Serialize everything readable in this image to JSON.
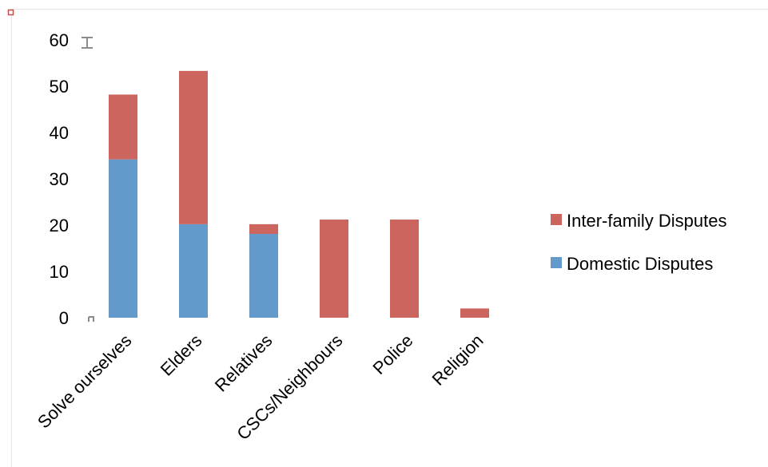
{
  "chart_data": {
    "type": "bar",
    "stacked": true,
    "categories": [
      "Solve ourselves",
      "Elders",
      "Relatives",
      "CSCs/Neighbours",
      "Police",
      "Religion"
    ],
    "series": [
      {
        "name": "Domestic Disputes",
        "color": "#6399cb",
        "values": [
          34.2,
          20.2,
          18.1,
          0,
          0,
          0
        ]
      },
      {
        "name": "Inter-family Disputes",
        "color": "#cd655f",
        "values": [
          14,
          33.1,
          2.1,
          21.2,
          21.2,
          2
        ]
      }
    ],
    "ylim": [
      0,
      60
    ],
    "yticks": [
      0,
      10,
      20,
      30,
      40,
      50,
      60
    ],
    "grid": false,
    "legend_placement": "right",
    "legend_order": [
      "Inter-family Disputes",
      "Domestic Disputes"
    ],
    "title": "",
    "xlabel": "",
    "ylabel": ""
  }
}
